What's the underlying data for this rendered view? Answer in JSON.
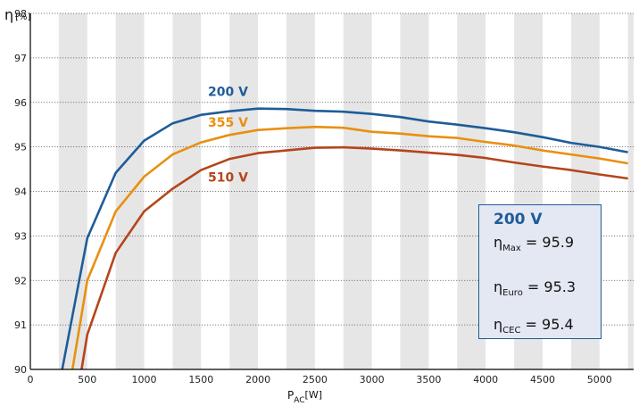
{
  "chart_data": {
    "type": "line",
    "y_axis_symbol": "η",
    "y_axis_unit": "[%]",
    "x_axis_symbol": "P",
    "x_axis_subscript": "AC",
    "x_axis_unit": "[W]",
    "xlim": [
      0,
      5300
    ],
    "ylim": [
      90,
      98
    ],
    "x_ticks": [
      0,
      500,
      1000,
      1500,
      2000,
      2500,
      3000,
      3500,
      4000,
      4500,
      5000
    ],
    "y_ticks": [
      90,
      91,
      92,
      93,
      94,
      95,
      96,
      97,
      98
    ],
    "grid": "horizontal dotted lines, alternating vertical bands",
    "series": [
      {
        "name": "200 V",
        "color": "#1f5c99",
        "points": [
          [
            280,
            90.0
          ],
          [
            500,
            92.95
          ],
          [
            750,
            94.42
          ],
          [
            1000,
            95.14
          ],
          [
            1250,
            95.53
          ],
          [
            1500,
            95.72
          ],
          [
            1750,
            95.8
          ],
          [
            2000,
            95.86
          ],
          [
            2250,
            95.85
          ],
          [
            2500,
            95.81
          ],
          [
            2750,
            95.79
          ],
          [
            3000,
            95.74
          ],
          [
            3250,
            95.67
          ],
          [
            3500,
            95.57
          ],
          [
            3750,
            95.5
          ],
          [
            4000,
            95.42
          ],
          [
            4250,
            95.33
          ],
          [
            4500,
            95.22
          ],
          [
            4750,
            95.09
          ],
          [
            5000,
            95.0
          ],
          [
            5250,
            94.88
          ]
        ]
      },
      {
        "name": "355 V",
        "color": "#e8900f",
        "points": [
          [
            370,
            90.0
          ],
          [
            500,
            92.0
          ],
          [
            750,
            93.55
          ],
          [
            1000,
            94.33
          ],
          [
            1250,
            94.83
          ],
          [
            1500,
            95.1
          ],
          [
            1750,
            95.27
          ],
          [
            2000,
            95.38
          ],
          [
            2250,
            95.42
          ],
          [
            2500,
            95.45
          ],
          [
            2750,
            95.43
          ],
          [
            3000,
            95.34
          ],
          [
            3250,
            95.3
          ],
          [
            3500,
            95.24
          ],
          [
            3750,
            95.2
          ],
          [
            4000,
            95.11
          ],
          [
            4250,
            95.03
          ],
          [
            4500,
            94.92
          ],
          [
            4750,
            94.83
          ],
          [
            5000,
            94.74
          ],
          [
            5250,
            94.63
          ]
        ]
      },
      {
        "name": "510 V",
        "color": "#b5451b",
        "points": [
          [
            450,
            90.0
          ],
          [
            500,
            90.78
          ],
          [
            750,
            92.62
          ],
          [
            1000,
            93.55
          ],
          [
            1250,
            94.06
          ],
          [
            1500,
            94.48
          ],
          [
            1750,
            94.73
          ],
          [
            2000,
            94.86
          ],
          [
            2250,
            94.92
          ],
          [
            2500,
            94.98
          ],
          [
            2750,
            94.99
          ],
          [
            3000,
            94.96
          ],
          [
            3250,
            94.92
          ],
          [
            3500,
            94.87
          ],
          [
            3750,
            94.82
          ],
          [
            4000,
            94.75
          ],
          [
            4250,
            94.65
          ],
          [
            4500,
            94.56
          ],
          [
            4750,
            94.48
          ],
          [
            5000,
            94.38
          ],
          [
            5250,
            94.29
          ]
        ]
      }
    ]
  },
  "info_box": {
    "title": "200 V",
    "eta_symbol": "η",
    "rows": [
      {
        "sub": "Max",
        "equals": "=",
        "value": "95.9"
      },
      {
        "sub": "Euro",
        "equals": "=",
        "value": "95.3"
      },
      {
        "sub": "CEC",
        "equals": "=",
        "value": "95.4"
      }
    ]
  },
  "colors": {
    "band": "#e6e6e6",
    "grid": "#555555",
    "axis": "#000000",
    "box_fill": "#e3e8f2",
    "box_border": "#1f5c99"
  }
}
